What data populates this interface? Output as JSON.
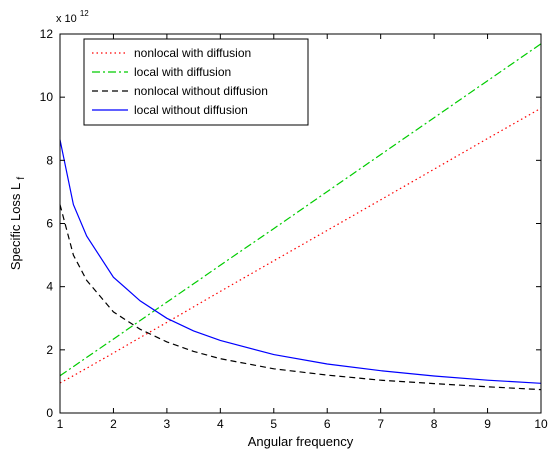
{
  "chart_data": {
    "type": "line",
    "xlabel": "Angular frequency",
    "ylabel": "Specific Loss L",
    "ylabel_subscript": "f",
    "y_multiplier_base": "x 10",
    "y_multiplier_exp": "12",
    "xlim": [
      1,
      10
    ],
    "ylim": [
      0,
      12
    ],
    "xticks": [
      1,
      2,
      3,
      4,
      5,
      6,
      7,
      8,
      9,
      10
    ],
    "yticks": [
      0,
      2,
      4,
      6,
      8,
      10,
      12
    ],
    "grid": false,
    "legend_position": "top-left",
    "x": [
      1,
      1.25,
      1.5,
      2,
      2.5,
      3,
      3.5,
      4,
      5,
      6,
      7,
      8,
      9,
      10
    ],
    "series": [
      {
        "name": "nonlocal with diffusion",
        "color": "#ff0000",
        "dash": "dotted",
        "values": [
          0.95,
          1.18,
          1.42,
          1.9,
          2.39,
          2.87,
          3.36,
          3.85,
          4.82,
          5.78,
          6.75,
          7.72,
          8.69,
          9.65
        ]
      },
      {
        "name": "local with diffusion",
        "color": "#00cc00",
        "dash": "dashdot",
        "values": [
          1.18,
          1.47,
          1.76,
          2.34,
          2.93,
          3.51,
          4.09,
          4.68,
          5.84,
          7.01,
          8.18,
          9.35,
          10.52,
          11.69
        ]
      },
      {
        "name": "nonlocal without diffusion",
        "color": "#000000",
        "dash": "dashed",
        "values": [
          6.6,
          5.0,
          4.2,
          3.2,
          2.65,
          2.25,
          1.95,
          1.72,
          1.4,
          1.2,
          1.04,
          0.93,
          0.83,
          0.74
        ]
      },
      {
        "name": "local without diffusion",
        "color": "#0000ff",
        "dash": "solid",
        "values": [
          8.65,
          6.6,
          5.6,
          4.3,
          3.55,
          3.0,
          2.6,
          2.3,
          1.85,
          1.55,
          1.34,
          1.17,
          1.04,
          0.94
        ]
      }
    ]
  }
}
